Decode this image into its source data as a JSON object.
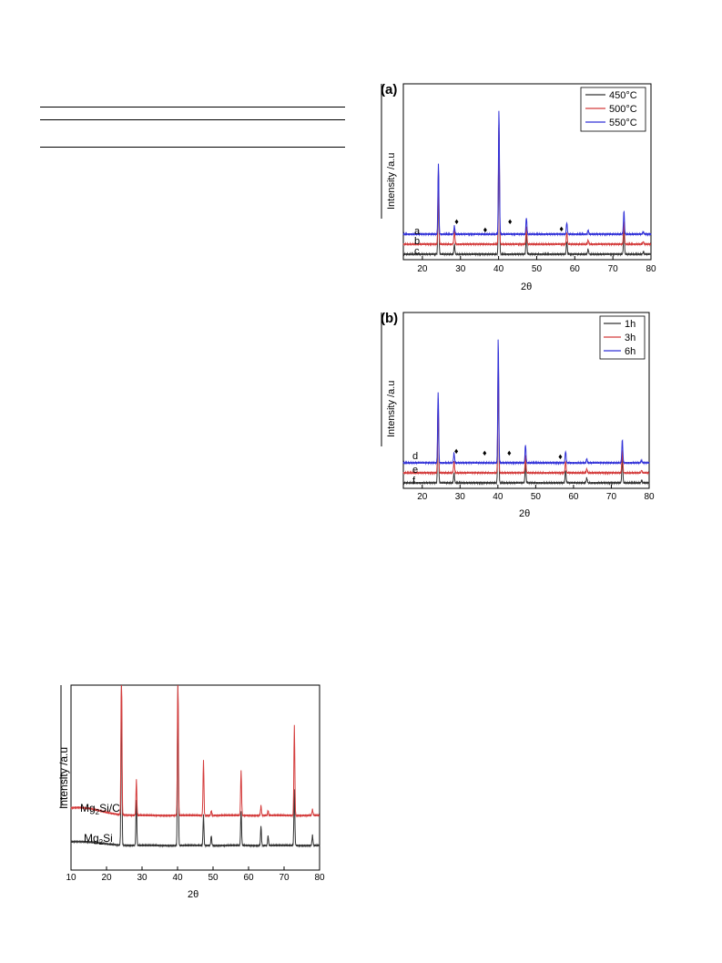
{
  "charts": [
    {
      "id": "a",
      "panel_label": "(a)",
      "xlabel": "2θ",
      "ylabel": "Intensity /a.u",
      "xlim": [
        15,
        80
      ],
      "xticks": [
        20,
        30,
        40,
        50,
        60,
        70,
        80
      ],
      "legend": [
        {
          "name": "450°C",
          "color": "#333333"
        },
        {
          "name": "500°C",
          "color": "#d43c3c"
        },
        {
          "name": "550°C",
          "color": "#3232d8"
        }
      ],
      "curve_labels": [
        "a",
        "b",
        "c"
      ],
      "annotation_marker": "♦",
      "annotation_x": [
        29,
        36.5,
        43,
        56.5
      ]
    },
    {
      "id": "b",
      "panel_label": "(b)",
      "xlabel": "2θ",
      "ylabel": "Intensity /a.u",
      "xlim": [
        15,
        80
      ],
      "xticks": [
        20,
        30,
        40,
        50,
        60,
        70,
        80
      ],
      "legend": [
        {
          "name": "1h",
          "color": "#333333"
        },
        {
          "name": "3h",
          "color": "#d43c3c"
        },
        {
          "name": "6h",
          "color": "#3232d8"
        }
      ],
      "curve_labels": [
        "d",
        "e",
        "f"
      ],
      "annotation_marker": "♦",
      "annotation_x": [
        29,
        36.5,
        43,
        56.5
      ]
    },
    {
      "id": "c",
      "panel_label": "",
      "xlabel": "2θ",
      "ylabel": "Intensity /a.u",
      "xlim": [
        10,
        80
      ],
      "xticks": [
        10,
        20,
        30,
        40,
        50,
        60,
        70,
        80
      ],
      "legend": [],
      "curve_text": [
        {
          "name": "Mg",
          "sub": "2",
          "rest": "Si/C",
          "color": "#d43c3c"
        },
        {
          "name": "Mg",
          "sub": "2",
          "rest": "Si",
          "color": "#333333"
        }
      ]
    }
  ],
  "chart_data": [
    {
      "type": "line",
      "title": "(a)",
      "xlabel": "2θ",
      "ylabel": "Intensity /a.u",
      "xlim": [
        15,
        80
      ],
      "peaks_2theta": [
        24.2,
        28.4,
        40.1,
        47.3,
        57.9,
        63.5,
        72.9,
        78.0
      ],
      "series": [
        {
          "name": "450°C",
          "label": "c",
          "color": "#333333",
          "baseline": 0.0,
          "peak_heights": [
            0.95,
            0.12,
            1.55,
            0.25,
            0.15,
            0.06,
            0.3,
            0.03
          ]
        },
        {
          "name": "500°C",
          "label": "b",
          "color": "#d43c3c",
          "baseline": 0.1,
          "peak_heights": [
            0.9,
            0.18,
            1.45,
            0.22,
            0.14,
            0.05,
            0.28,
            0.03
          ]
        },
        {
          "name": "550°C",
          "label": "a",
          "color": "#3232d8",
          "baseline": 0.2,
          "peak_heights": [
            0.85,
            0.1,
            1.5,
            0.2,
            0.14,
            0.05,
            0.28,
            0.03
          ]
        }
      ]
    },
    {
      "type": "line",
      "title": "(b)",
      "xlabel": "2θ",
      "ylabel": "Intensity /a.u",
      "xlim": [
        15,
        80
      ],
      "peaks_2theta": [
        24.2,
        28.4,
        40.1,
        47.3,
        57.9,
        63.5,
        72.9,
        78.0
      ],
      "series": [
        {
          "name": "1h",
          "label": "f",
          "color": "#333333",
          "baseline": 0.0,
          "peak_heights": [
            0.95,
            0.12,
            1.55,
            0.25,
            0.15,
            0.06,
            0.3,
            0.03
          ]
        },
        {
          "name": "3h",
          "label": "e",
          "color": "#d43c3c",
          "baseline": 0.1,
          "peak_heights": [
            0.9,
            0.14,
            1.45,
            0.22,
            0.14,
            0.05,
            0.28,
            0.03
          ]
        },
        {
          "name": "6h",
          "label": "d",
          "color": "#3232d8",
          "baseline": 0.2,
          "peak_heights": [
            0.85,
            0.12,
            1.5,
            0.22,
            0.14,
            0.05,
            0.28,
            0.03
          ]
        }
      ]
    },
    {
      "type": "line",
      "title": "",
      "xlabel": "2θ",
      "ylabel": "Intensity /a.u",
      "xlim": [
        10,
        80
      ],
      "peaks_2theta": [
        24.2,
        28.4,
        40.1,
        47.3,
        49.5,
        57.9,
        63.5,
        65.5,
        72.9,
        78.0
      ],
      "series": [
        {
          "name": "Mg2Si",
          "color": "#333333",
          "baseline": 0.0,
          "peak_heights": [
            1.6,
            0.45,
            1.6,
            0.3,
            0.1,
            0.35,
            0.2,
            0.1,
            0.55,
            0.1
          ]
        },
        {
          "name": "Mg2Si/C",
          "color": "#d43c3c",
          "baseline": 0.15,
          "peak_heights": [
            1.6,
            0.35,
            1.5,
            0.55,
            0.05,
            0.45,
            0.1,
            0.05,
            0.9,
            0.06
          ]
        }
      ]
    }
  ]
}
